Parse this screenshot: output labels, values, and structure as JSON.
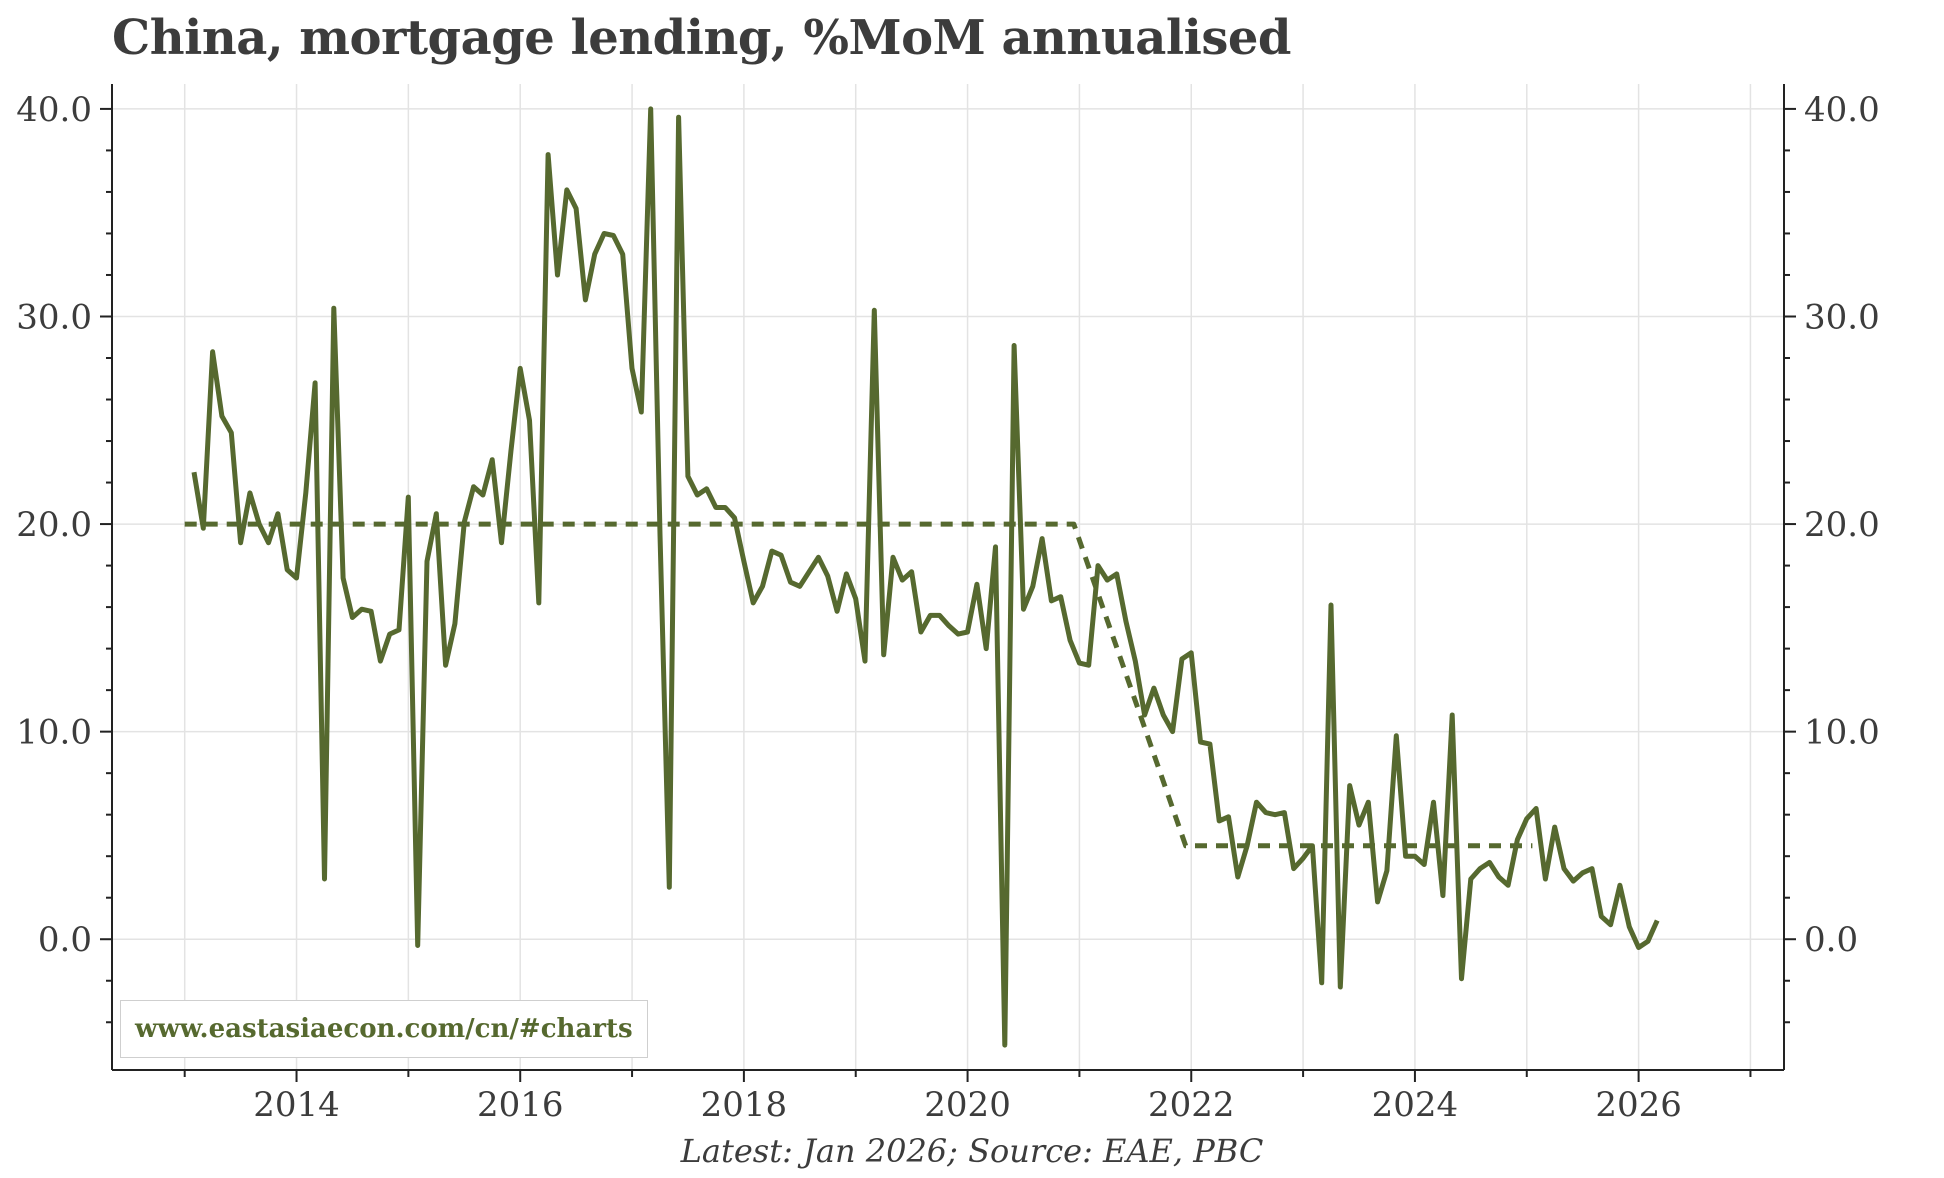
{
  "title": "China, mortgage lending, %MoM annualised",
  "source": "Latest: Jan 2026; Source: EAE, PBC",
  "watermark": "www.eastasiaecon.com/cn/#charts",
  "colors": {
    "series": "#56692f",
    "text": "#3c3c3c",
    "grid": "#e3e3e3"
  },
  "chart_data": {
    "type": "line",
    "title": "China, mortgage lending, %MoM annualised",
    "xlim": [
      2012.35,
      2027.3
    ],
    "ylim": [
      -6.3,
      41.2
    ],
    "x_ticks": [
      2014,
      2016,
      2018,
      2020,
      2022,
      2024,
      2026
    ],
    "x_tick_labels": [
      "2014",
      "2016",
      "2018",
      "2020",
      "2022",
      "2024",
      "2026"
    ],
    "y_ticks": [
      0,
      10,
      20,
      30,
      40
    ],
    "y_tick_labels": [
      "0.0",
      "10.0",
      "20.0",
      "30.0",
      "40.0"
    ],
    "grid": true,
    "dual_y_axis": true,
    "series": [
      {
        "style": "solid",
        "x_start": 2013.083,
        "step": "month",
        "values": [
          22.5,
          19.8,
          28.3,
          25.2,
          24.4,
          19.1,
          21.5,
          20.0,
          19.1,
          20.5,
          17.8,
          17.4,
          21.5,
          26.8,
          2.9,
          30.4,
          17.4,
          15.5,
          15.9,
          15.8,
          13.4,
          14.7,
          14.9,
          21.3,
          -0.3,
          18.2,
          20.5,
          13.2,
          15.2,
          20.1,
          21.8,
          21.4,
          23.1,
          19.1,
          23.5,
          27.5,
          25.0,
          16.2,
          37.8,
          32.0,
          36.1,
          35.2,
          30.8,
          33.0,
          34.0,
          33.9,
          33.0,
          27.5,
          25.4,
          40.0,
          19.5,
          2.5,
          39.6,
          22.3,
          21.4,
          21.7,
          20.8,
          20.8,
          20.3,
          18.2,
          16.2,
          17.0,
          18.7,
          18.5,
          17.2,
          17.0,
          17.7,
          18.4,
          17.5,
          15.8,
          17.6,
          16.4,
          13.4,
          30.3,
          13.7,
          18.4,
          17.3,
          17.7,
          14.8,
          15.6,
          15.6,
          15.1,
          14.7,
          14.8,
          17.1,
          14.0,
          18.9,
          -5.1,
          28.6,
          15.9,
          17.0,
          19.3,
          16.3,
          16.5,
          14.4,
          13.3,
          13.2,
          18.0,
          17.3,
          17.6,
          15.3,
          13.4,
          10.8,
          12.1,
          10.8,
          10.0,
          13.5,
          13.8,
          9.5,
          9.4,
          5.7,
          5.9,
          3.0,
          4.5,
          6.6,
          6.1,
          6.0,
          6.1,
          3.4,
          3.9,
          4.5,
          -2.1,
          16.1,
          -2.3,
          7.4,
          5.5,
          6.6,
          1.8,
          3.3,
          9.8,
          4.0,
          4.0,
          3.6,
          6.6,
          2.1,
          10.8,
          -1.9,
          2.9,
          3.4,
          3.7,
          3.0,
          2.6,
          4.8,
          5.8,
          6.3,
          2.9,
          5.4,
          3.4,
          2.8,
          3.2,
          3.4,
          1.1,
          0.7,
          2.6,
          0.6,
          -0.4,
          -0.1,
          0.9
        ]
      },
      {
        "style": "dashed",
        "points": [
          [
            2013.0,
            20.0
          ],
          [
            2020.95,
            20.0
          ],
          [
            2021.95,
            4.5
          ],
          [
            2025.05,
            4.5
          ]
        ]
      }
    ]
  }
}
